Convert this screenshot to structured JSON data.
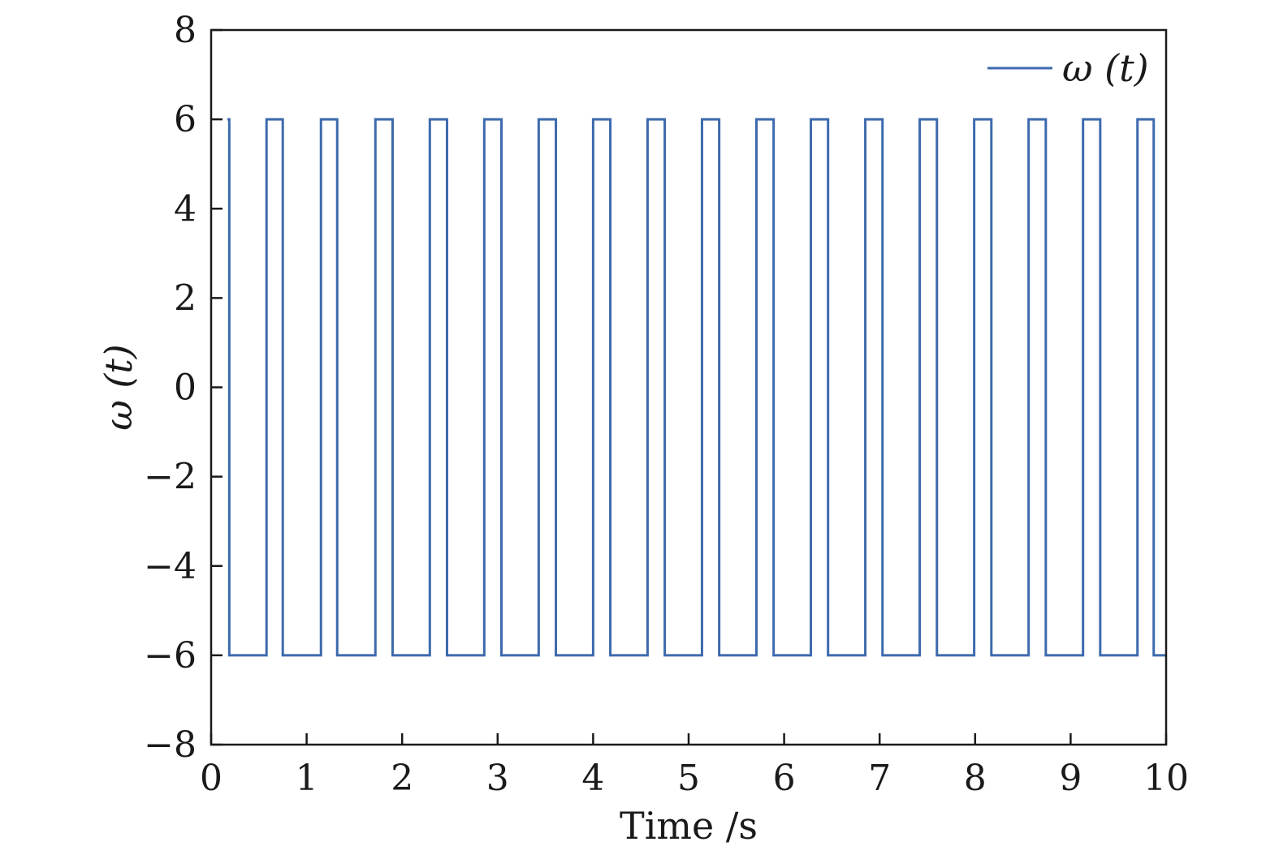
{
  "chart_data": {
    "type": "line",
    "xlabel": "Time /s",
    "ylabel": "ω (t)",
    "xlim": [
      0,
      10
    ],
    "ylim": [
      -8,
      8
    ],
    "x_ticks": [
      0,
      1,
      2,
      3,
      4,
      5,
      6,
      7,
      8,
      9,
      10
    ],
    "y_ticks": [
      8,
      6,
      4,
      2,
      0,
      -2,
      -4,
      -6,
      -8
    ],
    "x_tick_labels": [
      "0",
      "1",
      "2",
      "3",
      "4",
      "5",
      "6",
      "7",
      "8",
      "9",
      "10"
    ],
    "y_tick_labels": [
      "8",
      "6",
      "4",
      "2",
      "0",
      "−2",
      "−4",
      "−6",
      "−8"
    ],
    "grid": false,
    "legend_position": "top-right",
    "series": [
      {
        "name": "ω (t)",
        "color": "#3d6aad",
        "high": 6,
        "low": -6,
        "high_intervals": [
          [
            0.17,
            0.19
          ],
          [
            0.58,
            0.75
          ],
          [
            1.15,
            1.32
          ],
          [
            1.72,
            1.9
          ],
          [
            2.29,
            2.47
          ],
          [
            2.86,
            3.04
          ],
          [
            3.43,
            3.61
          ],
          [
            4.0,
            4.18
          ],
          [
            4.57,
            4.75
          ],
          [
            5.14,
            5.32
          ],
          [
            5.71,
            5.89
          ],
          [
            6.28,
            6.46
          ],
          [
            6.85,
            7.03
          ],
          [
            7.42,
            7.6
          ],
          [
            7.99,
            8.17
          ],
          [
            8.56,
            8.74
          ],
          [
            9.13,
            9.31
          ],
          [
            9.7,
            9.87
          ]
        ]
      }
    ]
  }
}
